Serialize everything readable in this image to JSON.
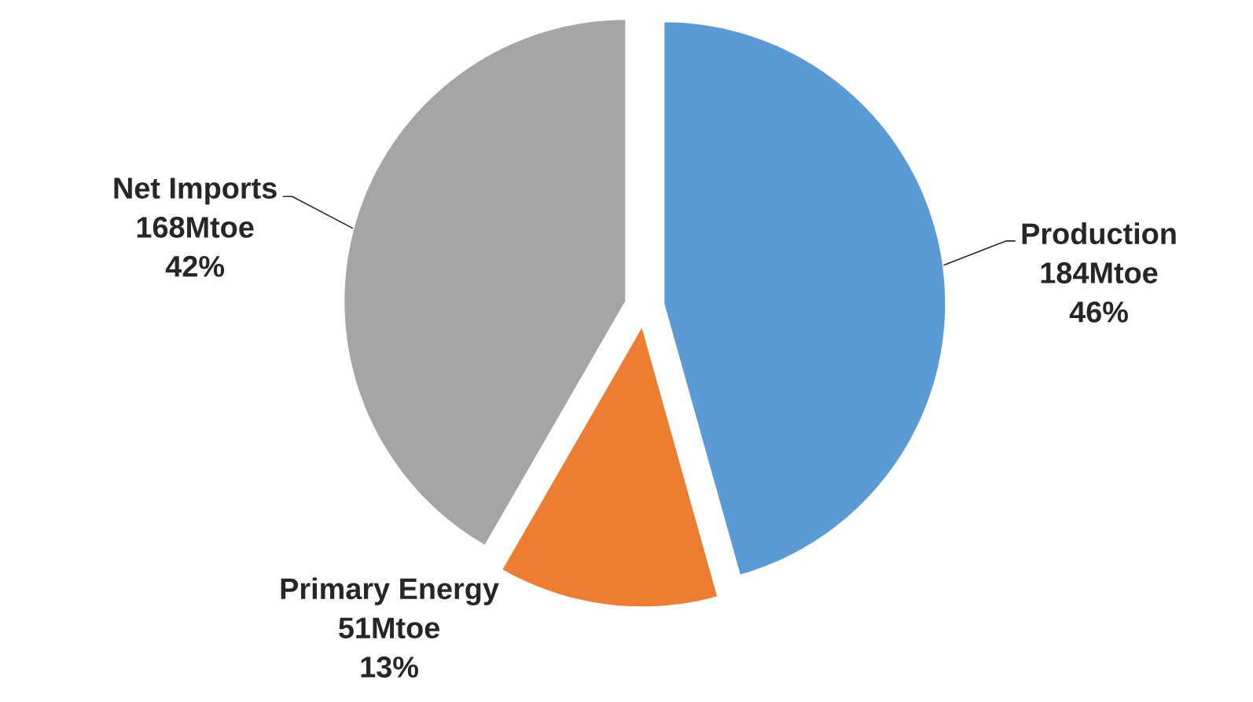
{
  "chart_data": {
    "type": "pie",
    "categories": [
      "Production",
      "Primary Energy",
      "Net Imports"
    ],
    "values": [
      184,
      51,
      168
    ],
    "colors": [
      "#5b9bd5",
      "#ed7d31",
      "#a5a5a5"
    ],
    "value_labels": [
      "184Mtoe",
      "51Mtoe",
      "168Mtoe"
    ],
    "annotations": [
      {
        "text": "46%",
        "x": "Production"
      },
      {
        "text": "13%",
        "x": "Primary Energy"
      },
      {
        "text": "42%",
        "x": "Net Imports"
      }
    ]
  }
}
